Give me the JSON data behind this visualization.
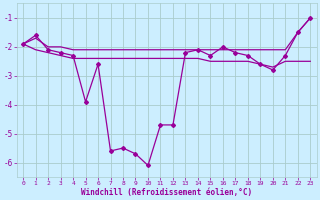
{
  "xlabel": "Windchill (Refroidissement éolien,°C)",
  "hours": [
    0,
    1,
    2,
    3,
    4,
    5,
    6,
    7,
    8,
    9,
    10,
    11,
    12,
    13,
    14,
    15,
    16,
    17,
    18,
    19,
    20,
    21,
    22,
    23
  ],
  "windchill": [
    -1.9,
    -1.6,
    -2.1,
    -2.2,
    -2.3,
    -3.9,
    -2.6,
    -5.6,
    -5.5,
    -5.7,
    -6.1,
    -4.7,
    -4.7,
    -2.2,
    -2.1,
    -2.3,
    -2.0,
    -2.2,
    -2.3,
    -2.6,
    -2.8,
    -2.3,
    -1.5,
    -1.0
  ],
  "upper_line": [
    -1.9,
    -1.7,
    -2.0,
    -2.0,
    -2.1,
    -2.1,
    -2.1,
    -2.1,
    -2.1,
    -2.1,
    -2.1,
    -2.1,
    -2.1,
    -2.1,
    -2.1,
    -2.1,
    -2.1,
    -2.1,
    -2.1,
    -2.1,
    -2.1,
    -2.1,
    -1.5,
    -1.0
  ],
  "lower_line": [
    -1.9,
    -2.1,
    -2.2,
    -2.3,
    -2.4,
    -2.4,
    -2.4,
    -2.4,
    -2.4,
    -2.4,
    -2.4,
    -2.4,
    -2.4,
    -2.4,
    -2.4,
    -2.5,
    -2.5,
    -2.5,
    -2.5,
    -2.6,
    -2.7,
    -2.5,
    -2.5,
    -2.5
  ],
  "line_color": "#990099",
  "bg_color": "#cceeff",
  "grid_color": "#aacccc",
  "ylim": [
    -6.5,
    -0.5
  ],
  "yticks": [
    -6,
    -5,
    -4,
    -3,
    -2,
    -1
  ],
  "xlim": [
    -0.5,
    23.5
  ]
}
